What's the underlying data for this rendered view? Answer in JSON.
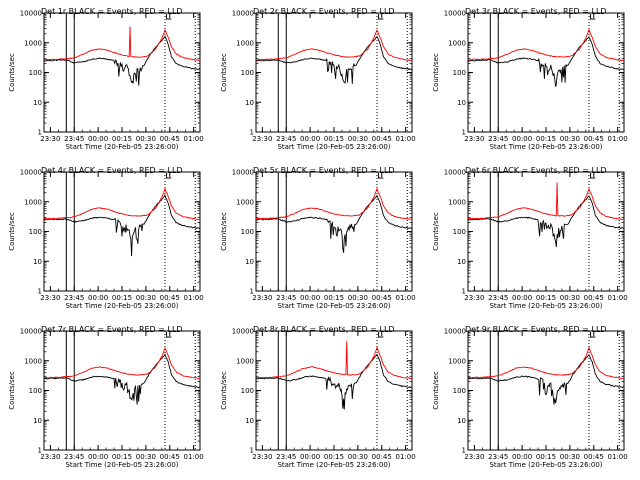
{
  "chart_data": {
    "type": "line",
    "grid": "3x3",
    "ylabel": "Counts/sec",
    "xlabel": "Start Time (20-Feb-05 23:26:00)",
    "x_tick_labels": [
      "23:30",
      "23:45",
      "00:00",
      "00:15",
      "00:30",
      "00:45",
      "01:00"
    ],
    "x_range_minutes": [
      0,
      98
    ],
    "y_scale": "log",
    "ylim": [
      1,
      10000
    ],
    "y_tick_labels": [
      "1",
      "10",
      "100",
      "1000",
      "10000"
    ],
    "y_tick_values": [
      1,
      10,
      100,
      1000,
      10000
    ],
    "series_colors": {
      "events": "#000000",
      "lld": "#ff0000"
    },
    "markers": {
      "solid_lines_minutes": [
        14,
        19
      ],
      "dotted_lines_minutes": [
        76,
        95
      ],
      "bracket_minutes": [
        77,
        80
      ]
    },
    "panels": [
      {
        "title": "Det 1r BLACK = Events, RED = LLD",
        "spike_minute": 54,
        "spike_value": 3500
      },
      {
        "title": "Det 2r BLACK = Events, RED = LLD",
        "spike_minute": null,
        "spike_value": null
      },
      {
        "title": "Det 3r BLACK = Events, RED = LLD",
        "spike_minute": null,
        "spike_value": null
      },
      {
        "title": "Det 4r BLACK = Events, RED = LLD",
        "spike_minute": null,
        "spike_value": null
      },
      {
        "title": "Det 5r BLACK = Events, RED = LLD",
        "spike_minute": null,
        "spike_value": null
      },
      {
        "title": "Det 6r BLACK = Events, RED = LLD",
        "spike_minute": 56,
        "spike_value": 4500
      },
      {
        "title": "Det 7r BLACK = Events, RED = LLD",
        "spike_minute": null,
        "spike_value": null
      },
      {
        "title": "Det 8r BLACK = Events, RED = LLD",
        "spike_minute": 57,
        "spike_value": 4500
      },
      {
        "title": "Det 9r BLACK = Events, RED = LLD",
        "spike_minute": null,
        "spike_value": null
      }
    ],
    "lld_curve": {
      "x": [
        0,
        5,
        10,
        14,
        19,
        25,
        30,
        35,
        40,
        45,
        50,
        55,
        60,
        65,
        70,
        74,
        76,
        78,
        80,
        83,
        87,
        92,
        96,
        98
      ],
      "y": [
        270,
        275,
        280,
        290,
        310,
        420,
        560,
        620,
        560,
        450,
        380,
        340,
        330,
        360,
        600,
        1400,
        2700,
        1500,
        750,
        420,
        320,
        280,
        260,
        255
      ]
    },
    "events_curve": {
      "x": [
        0,
        5,
        10,
        14,
        19,
        25,
        30,
        35,
        40,
        45,
        48,
        50,
        52,
        54,
        55,
        57,
        60,
        63,
        66,
        70,
        74,
        76,
        78,
        80,
        83,
        87,
        92,
        96,
        98
      ],
      "y": [
        250,
        255,
        260,
        265,
        210,
        230,
        280,
        300,
        280,
        240,
        200,
        130,
        160,
        80,
        45,
        110,
        150,
        180,
        350,
        700,
        1200,
        1600,
        900,
        350,
        200,
        160,
        140,
        130,
        130
      ]
    }
  }
}
